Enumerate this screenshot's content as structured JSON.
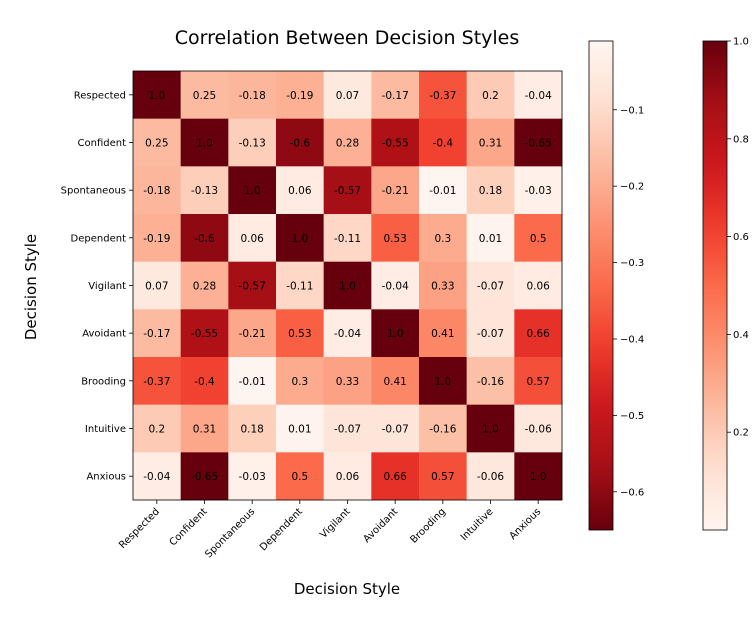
{
  "chart_data": {
    "type": "heatmap",
    "title": "Correlation Between Decision Styles",
    "xlabel": "Decision Style",
    "ylabel": "Decision Style",
    "categories": [
      "Respected",
      "Confident",
      "Spontaneous",
      "Dependent",
      "Vigilant",
      "Avoidant",
      "Brooding",
      "Intuitive",
      "Anxious"
    ],
    "matrix": [
      [
        "1.0",
        "0.25",
        "-0.18",
        "-0.19",
        "0.07",
        "-0.17",
        "-0.37",
        "0.2",
        "-0.04"
      ],
      [
        "0.25",
        "1.0",
        "-0.13",
        "-0.6",
        "0.28",
        "-0.55",
        "-0.4",
        "0.31",
        "-0.65"
      ],
      [
        "-0.18",
        "-0.13",
        "1.0",
        "0.06",
        "-0.57",
        "-0.21",
        "-0.01",
        "0.18",
        "-0.03"
      ],
      [
        "-0.19",
        "-0.6",
        "0.06",
        "1.0",
        "-0.11",
        "0.53",
        "0.3",
        "0.01",
        "0.5"
      ],
      [
        "0.07",
        "0.28",
        "-0.57",
        "-0.11",
        "1.0",
        "-0.04",
        "0.33",
        "-0.07",
        "0.06"
      ],
      [
        "-0.17",
        "-0.55",
        "-0.21",
        "0.53",
        "-0.04",
        "1.0",
        "0.41",
        "-0.07",
        "0.66"
      ],
      [
        "-0.37",
        "-0.4",
        "-0.01",
        "0.3",
        "0.33",
        "0.41",
        "1.0",
        "-0.16",
        "0.57"
      ],
      [
        "0.2",
        "0.31",
        "0.18",
        "0.01",
        "-0.07",
        "-0.07",
        "-0.16",
        "1.0",
        "-0.06"
      ],
      [
        "-0.04",
        "-0.65",
        "-0.03",
        "0.5",
        "0.06",
        "0.66",
        "0.57",
        "-0.06",
        "1.0"
      ]
    ],
    "colormap": "Reds",
    "colorbar_negative": {
      "range": [
        -0.65,
        -0.01
      ],
      "ticks": [
        "−0.1",
        "−0.2",
        "−0.3",
        "−0.4",
        "−0.5",
        "−0.6"
      ],
      "tick_values": [
        -0.1,
        -0.2,
        -0.3,
        -0.4,
        -0.5,
        -0.6
      ]
    },
    "colorbar_positive": {
      "range": [
        0.0,
        1.0
      ],
      "ticks": [
        "0.2",
        "0.4",
        "0.6",
        "0.8",
        "1.0"
      ],
      "tick_values": [
        0.2,
        0.4,
        0.6,
        0.8,
        1.0
      ]
    },
    "grid": false
  }
}
